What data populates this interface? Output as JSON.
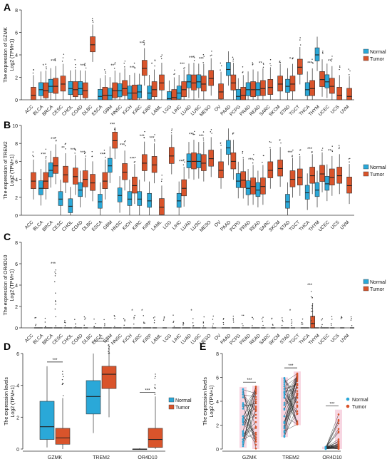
{
  "figure": {
    "cancer_types": [
      "ACC",
      "BLCA",
      "BRCA",
      "CESC",
      "CHOL",
      "COAD",
      "DLBC",
      "ESCA",
      "GBM",
      "HNSC",
      "KICH",
      "KIRC",
      "KIRP",
      "LAML",
      "LGG",
      "LIHC",
      "LUAD",
      "LUSC",
      "MESO",
      "OV",
      "PAAD",
      "PCPG",
      "PRAD",
      "READ",
      "SARC",
      "SKCM",
      "STAD",
      "TGCT",
      "THCA",
      "THYM",
      "UCEC",
      "UCS",
      "UVM"
    ],
    "legend": [
      "Normal",
      "Tumor"
    ],
    "colors": {
      "normal": "#2aa8d8",
      "tumor": "#d9542b",
      "line": "#222222",
      "pink": "#e58fb0"
    }
  },
  "chart_data": [
    {
      "type": "box",
      "panel": "A",
      "ylabel_1": "The expression of GZMK",
      "ylabel_2": "Log2 (TPM+1)",
      "ylim": [
        0,
        8
      ],
      "yticks": [
        "0",
        "2",
        "4",
        "6",
        "8"
      ],
      "normal_med": [
        null,
        0.9,
        1.2,
        null,
        1.0,
        1.0,
        null,
        0.3,
        0.4,
        0.8,
        0.6,
        0.7,
        0.6,
        null,
        0.1,
        0.6,
        1.6,
        1.6,
        null,
        null,
        2.7,
        0.3,
        0.9,
        0.9,
        null,
        null,
        1.2,
        null,
        0.9,
        4.0,
        1.6,
        null,
        null
      ],
      "tumor_med": [
        0.4,
        0.8,
        1.2,
        1.4,
        0.9,
        0.8,
        4.9,
        0.4,
        0.8,
        1.0,
        0.6,
        2.8,
        0.9,
        1.5,
        0.2,
        0.9,
        1.5,
        1.4,
        1.9,
        0.7,
        1.5,
        0.4,
        0.9,
        1.0,
        1.1,
        1.4,
        1.4,
        2.9,
        1.0,
        1.8,
        1.2,
        0.4,
        0.3
      ],
      "significance": [
        "",
        "*",
        "***",
        "",
        "",
        "***",
        "",
        "",
        "**",
        "",
        "***",
        "***",
        "*",
        "",
        "",
        "**",
        "***",
        "***",
        "",
        "",
        "",
        "",
        "",
        "**",
        "",
        "",
        "*",
        "",
        "***",
        "",
        "**",
        "",
        ""
      ]
    },
    {
      "type": "box",
      "panel": "B",
      "ylabel_1": "The expression of TREM2",
      "ylabel_2": "Log2 (TPM+1)",
      "ylim": [
        0,
        10
      ],
      "yticks": [
        "0",
        "2",
        "4",
        "6",
        "8",
        "10"
      ],
      "normal_med": [
        null,
        3.0,
        5.0,
        1.8,
        1.0,
        2.8,
        null,
        1.5,
        5.5,
        2.2,
        1.8,
        1.8,
        1.6,
        null,
        null,
        1.6,
        6.0,
        6.0,
        null,
        null,
        7.5,
        3.8,
        3.0,
        2.8,
        null,
        null,
        1.5,
        null,
        2.5,
        2.8,
        3.5,
        null,
        null
      ],
      "tumor_med": [
        3.8,
        3.8,
        5.5,
        4.5,
        4.3,
        4.0,
        3.6,
        3.8,
        8.3,
        4.8,
        3.3,
        5.8,
        5.6,
        0.9,
        6.6,
        3.0,
        6.0,
        5.8,
        6.3,
        5.0,
        6.0,
        3.9,
        3.2,
        3.2,
        5.0,
        5.2,
        4.0,
        4.2,
        4.4,
        4.6,
        4.2,
        4.4,
        3.3
      ],
      "significance": [
        "",
        "***",
        "***",
        "**",
        "***",
        "***",
        "",
        "***",
        "***",
        "***",
        "***",
        "***",
        "***",
        "",
        "",
        "***",
        "***",
        "***",
        "",
        "",
        "",
        "",
        "***",
        "",
        "",
        "",
        "***",
        "",
        "***",
        "",
        "**",
        "",
        ""
      ]
    },
    {
      "type": "box",
      "panel": "C",
      "ylabel_1": "The expression of OR4D10",
      "ylabel_2": "Log2 (TPM+1)",
      "ylim": [
        0,
        8
      ],
      "yticks": [
        "0",
        "2",
        "4",
        "6",
        "8"
      ],
      "normal_med": [
        null,
        0,
        0,
        0,
        0,
        0,
        null,
        0,
        0,
        0,
        0,
        0,
        0,
        null,
        null,
        0,
        0,
        0,
        null,
        null,
        0,
        0,
        0,
        0,
        null,
        null,
        0,
        null,
        0,
        0,
        0,
        null,
        null
      ],
      "tumor_med": [
        0,
        0,
        0,
        0,
        0,
        0,
        0,
        0,
        0,
        0,
        0,
        0,
        0,
        0,
        0,
        0,
        0,
        0,
        0,
        0,
        0,
        0,
        0,
        0,
        0,
        0,
        0,
        0,
        0.4,
        0,
        0,
        0,
        0
      ],
      "significance": [
        "",
        "",
        "***",
        "",
        "",
        "",
        "",
        "",
        "",
        "",
        "*",
        "*",
        "",
        "",
        "",
        "",
        "*",
        "",
        "",
        "",
        "",
        "",
        "",
        "",
        "",
        "",
        "*",
        "",
        "***",
        "",
        "",
        "",
        ""
      ]
    },
    {
      "type": "box",
      "panel": "D",
      "ylabel_1": "The expression levels",
      "ylabel_2": "Log2 (TPM+1)",
      "categories": [
        "GZMK",
        "TREM2",
        "OR4D10"
      ],
      "ylim": [
        0,
        6
      ],
      "yticks": [
        "0",
        "2",
        "4",
        "6"
      ],
      "normal": [
        {
          "min": 0.1,
          "q1": 0.6,
          "med": 1.4,
          "q3": 3.0,
          "max": 5.2
        },
        {
          "min": 1.0,
          "q1": 2.2,
          "med": 3.3,
          "q3": 4.3,
          "max": 6.0
        },
        {
          "min": 0.0,
          "q1": 0.0,
          "med": 0.0,
          "q3": 0.0,
          "max": 0.05
        }
      ],
      "tumor": [
        {
          "min": 0.0,
          "q1": 0.3,
          "med": 0.7,
          "q3": 1.3,
          "max": 3.2
        },
        {
          "min": 2.0,
          "q1": 3.8,
          "med": 4.7,
          "q3": 5.2,
          "max": 6.5
        },
        {
          "min": 0.0,
          "q1": 0.1,
          "med": 0.6,
          "q3": 1.3,
          "max": 3.3
        }
      ],
      "significance": [
        "***",
        "***",
        "***"
      ]
    },
    {
      "type": "paired",
      "panel": "E",
      "ylabel_1": "The expression levels",
      "ylabel_2": "Log2 (TPM+1)",
      "categories": [
        "GZMK",
        "TREM2",
        "OR4D10"
      ],
      "ylim": [
        0,
        8
      ],
      "yticks": [
        "0",
        "2",
        "4",
        "6",
        "8"
      ],
      "significance": [
        "***",
        "***",
        "***"
      ]
    }
  ]
}
